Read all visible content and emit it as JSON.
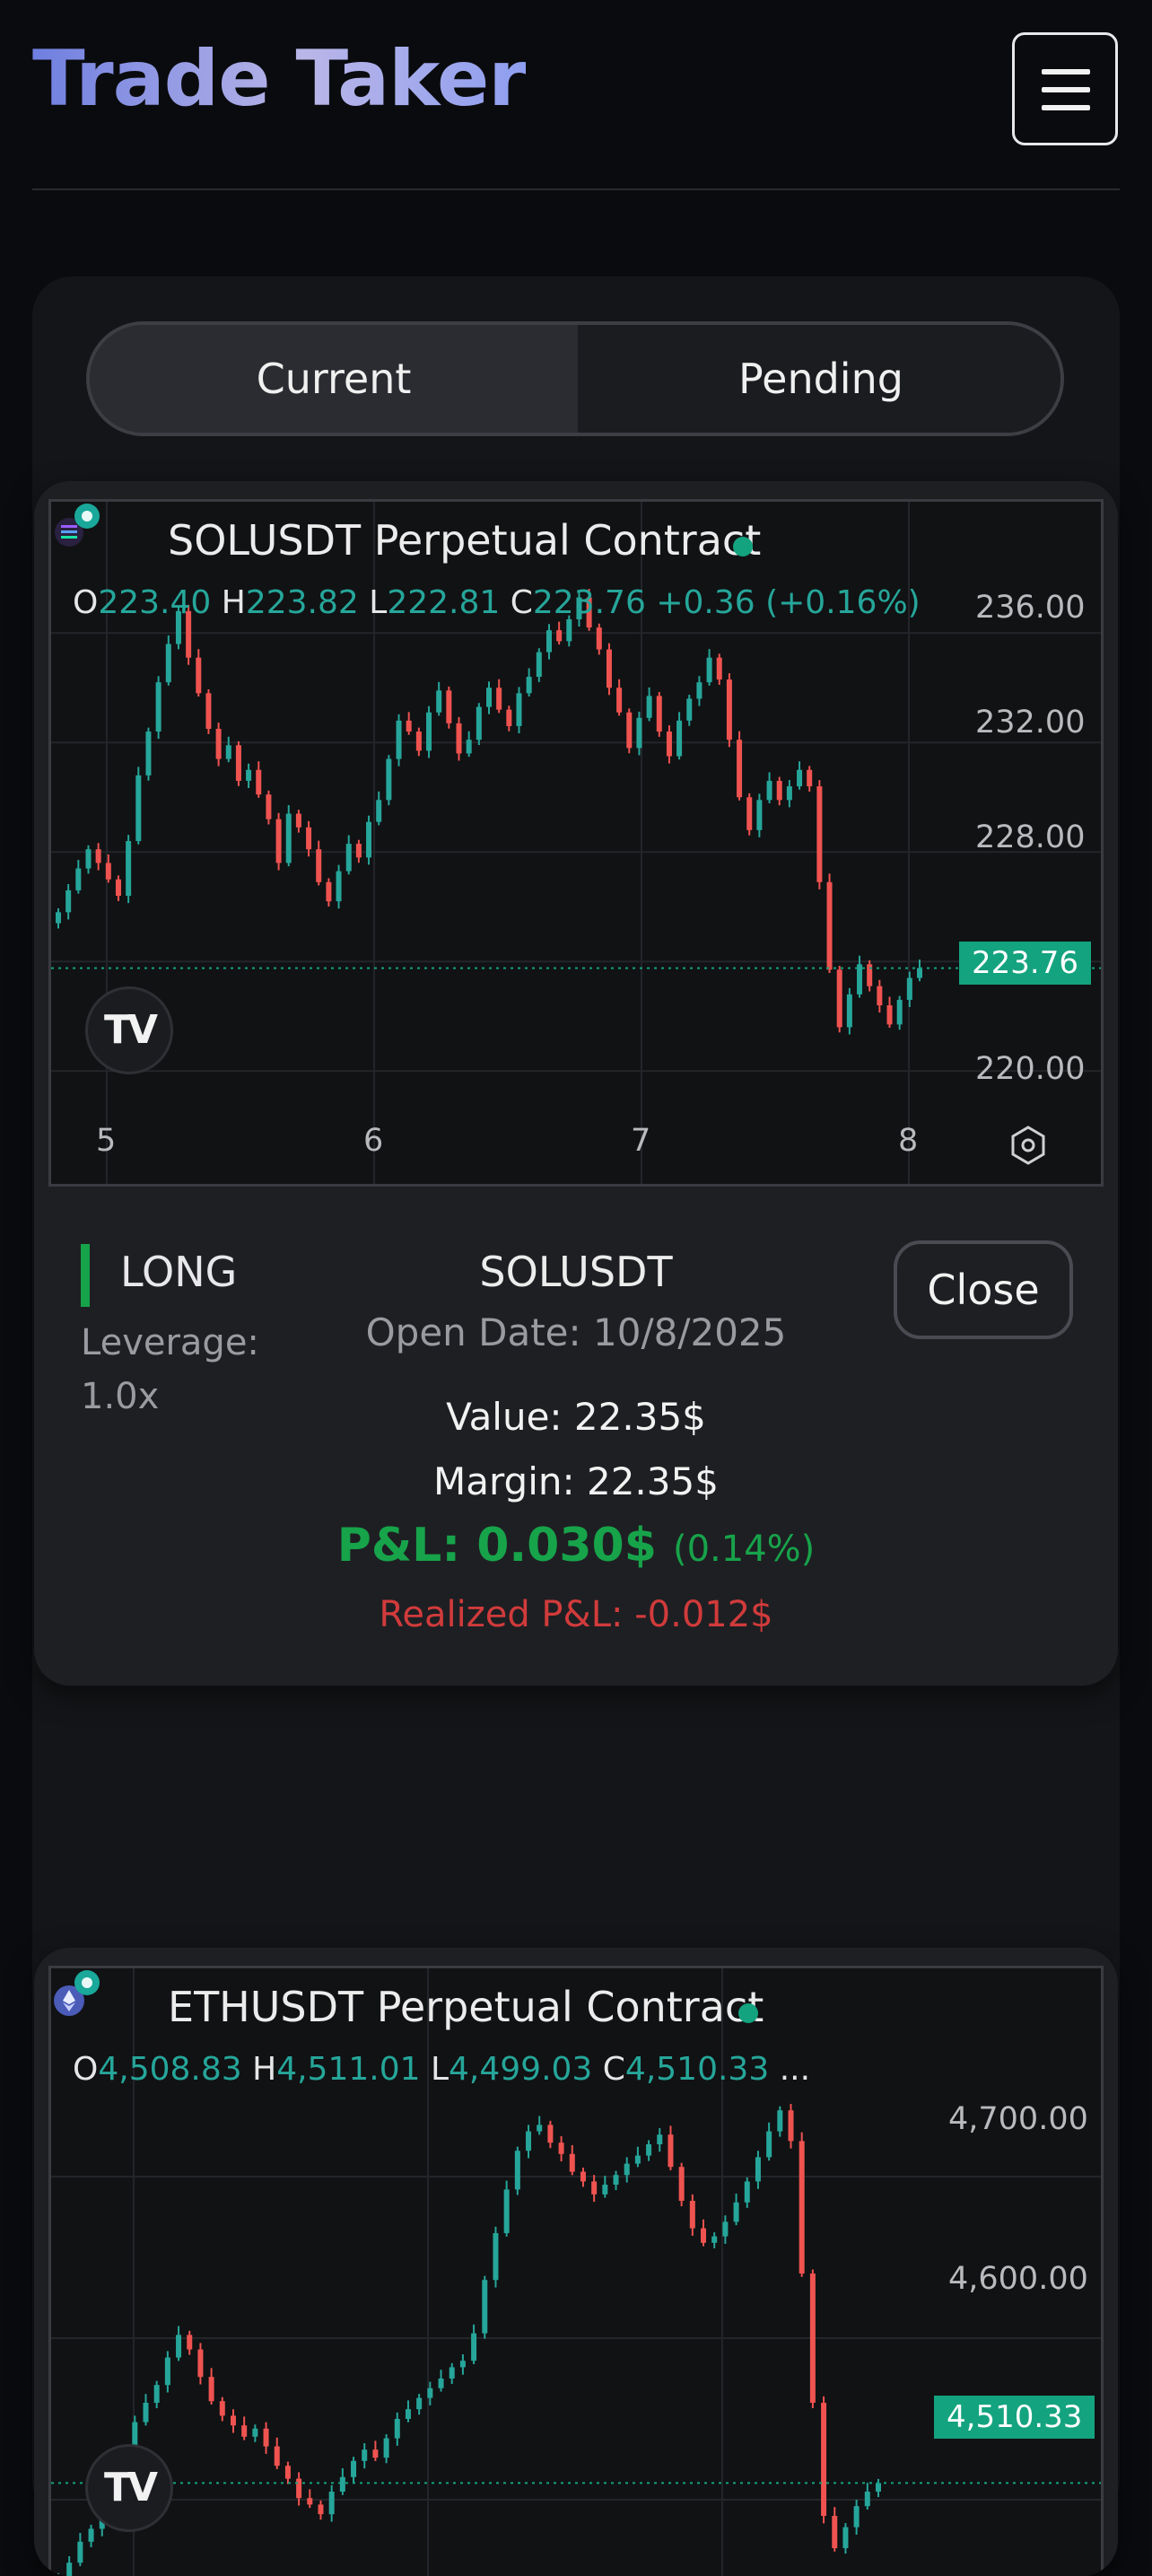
{
  "app": {
    "title": "Trade Taker"
  },
  "tabs": [
    {
      "label": "Current",
      "active": true
    },
    {
      "label": "Pending",
      "active": false
    }
  ],
  "positions": [
    {
      "chart": {
        "title": "SOLUSDT Perpetual Contract",
        "ohlc": {
          "o": "223.40",
          "h": "223.82",
          "l": "222.81",
          "c": "223.76",
          "change": "+0.36 (+0.16%)"
        },
        "price_tag": "223.76",
        "y_ticks": [
          "236.00",
          "232.00",
          "228.00",
          "220.00"
        ],
        "x_ticks": [
          "5",
          "6",
          "7",
          "8"
        ],
        "badge_icon": "solana-coin-icon",
        "logo_text": "TV"
      },
      "side": "LONG",
      "leverage_label": "Leverage:",
      "leverage_value": "1.0x",
      "symbol": "SOLUSDT",
      "open_date": "Open Date: 10/8/2025",
      "value": "Value: 22.35$",
      "margin": "Margin: 22.35$",
      "pnl": "P&L: 0.030$",
      "pnl_pct": "(0.14%)",
      "realized_pnl": "Realized P&L: -0.012$",
      "close_label": "Close"
    },
    {
      "chart": {
        "title": "ETHUSDT Perpetual Contract",
        "ohlc": {
          "o": "4,508.83",
          "h": "4,511.01",
          "l": "4,499.03",
          "c": "4,510.33",
          "change": "..."
        },
        "price_tag": "4,510.33",
        "y_ticks": [
          "4,700.00",
          "4,600.00"
        ],
        "badge_icon": "ethereum-coin-icon",
        "logo_text": "TV"
      }
    }
  ],
  "colors": {
    "up": "#26a69a",
    "down": "#ef5350",
    "accent": "#14a37f",
    "profit": "#17a34a",
    "loss": "#d13b3b"
  },
  "chart_data": [
    {
      "type": "candlestick",
      "title": "SOLUSDT Perpetual Contract",
      "x_ticks": [
        "5",
        "6",
        "7",
        "8"
      ],
      "ylim": [
        218.5,
        238.5
      ],
      "last_price": 223.76,
      "closes": [
        225.8,
        226.6,
        227.4,
        228.1,
        227.6,
        227.0,
        226.4,
        228.4,
        230.8,
        232.4,
        234.2,
        235.6,
        236.8,
        235.1,
        233.8,
        232.5,
        231.4,
        231.9,
        230.6,
        231.0,
        230.1,
        229.2,
        227.6,
        229.4,
        228.9,
        228.1,
        226.9,
        226.2,
        227.3,
        228.3,
        227.8,
        229.1,
        229.9,
        231.4,
        232.8,
        232.4,
        231.7,
        233.1,
        233.9,
        232.7,
        231.6,
        232.1,
        233.3,
        234.0,
        233.2,
        232.6,
        233.8,
        234.4,
        235.3,
        236.1,
        235.7,
        236.5,
        237.3,
        236.2,
        235.4,
        234.0,
        233.1,
        231.8,
        232.9,
        233.7,
        232.4,
        231.5,
        232.8,
        233.6,
        234.2,
        235.1,
        234.3,
        232.1,
        230.0,
        228.8,
        229.9,
        230.6,
        229.9,
        230.4,
        231.0,
        230.4,
        226.9,
        223.7,
        221.6,
        222.8,
        223.9,
        223.1,
        222.4,
        221.7,
        222.6,
        223.4,
        223.76
      ]
    },
    {
      "type": "candlestick",
      "title": "ETHUSDT Perpetual Contract",
      "ylim": [
        4440,
        4790
      ],
      "last_price": 4510.33,
      "closes": [
        4452,
        4461,
        4474,
        4482,
        4496,
        4515,
        4531,
        4548,
        4560,
        4571,
        4588,
        4602,
        4593,
        4576,
        4561,
        4552,
        4546,
        4539,
        4544,
        4533,
        4521,
        4513,
        4501,
        4497,
        4491,
        4505,
        4514,
        4524,
        4531,
        4526,
        4538,
        4550,
        4556,
        4563,
        4569,
        4575,
        4582,
        4586,
        4603,
        4636,
        4665,
        4692,
        4716,
        4728,
        4732,
        4721,
        4714,
        4703,
        4697,
        4689,
        4695,
        4701,
        4708,
        4713,
        4720,
        4726,
        4706,
        4685,
        4668,
        4659,
        4663,
        4672,
        4684,
        4697,
        4712,
        4728,
        4741,
        4722,
        4640,
        4560,
        4490,
        4470,
        4483,
        4496,
        4505,
        4510.33
      ]
    }
  ]
}
